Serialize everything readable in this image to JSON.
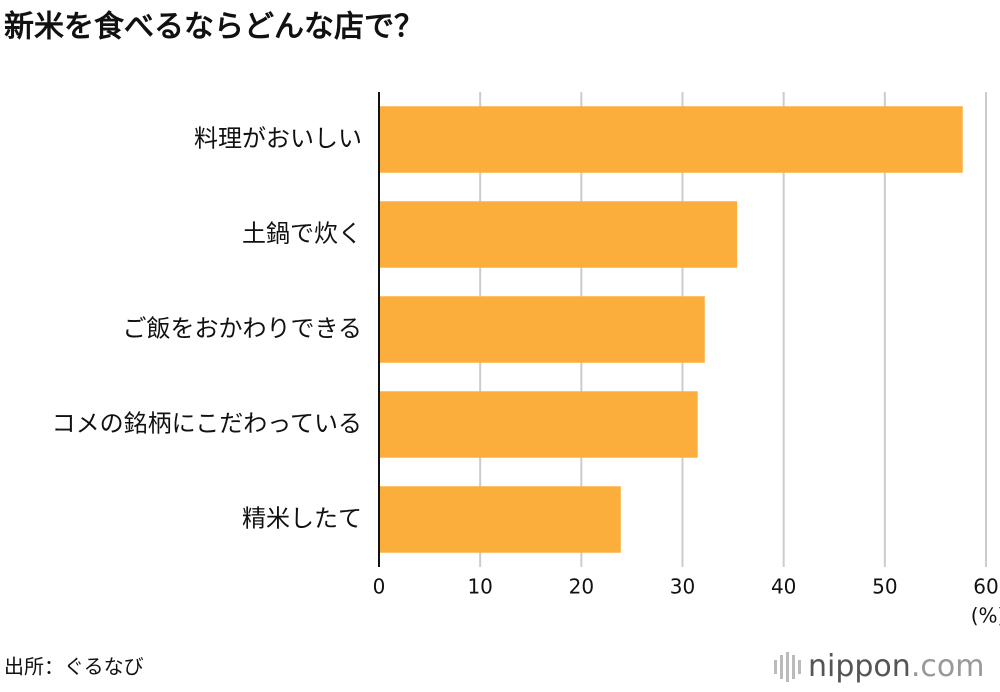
{
  "chart_data": {
    "type": "bar",
    "orientation": "horizontal",
    "title": "新米を食べるならどんな店で？",
    "categories": [
      "料理がおいしい",
      "土鍋で炊く",
      "ご飯をおかわりできる",
      "コメの銘柄にこだわっている",
      "精米したて"
    ],
    "values": [
      57.7,
      35.4,
      32.2,
      31.5,
      23.9
    ],
    "color": "#fbae3c",
    "xlim": [
      0,
      60
    ],
    "xticks": [
      0,
      10,
      20,
      30,
      40,
      50,
      60
    ],
    "x_label": "(%)",
    "grid": true
  },
  "footer": {
    "source": "出所：ぐるなび",
    "logo_main": "nippon",
    "logo_tail": ".com"
  }
}
